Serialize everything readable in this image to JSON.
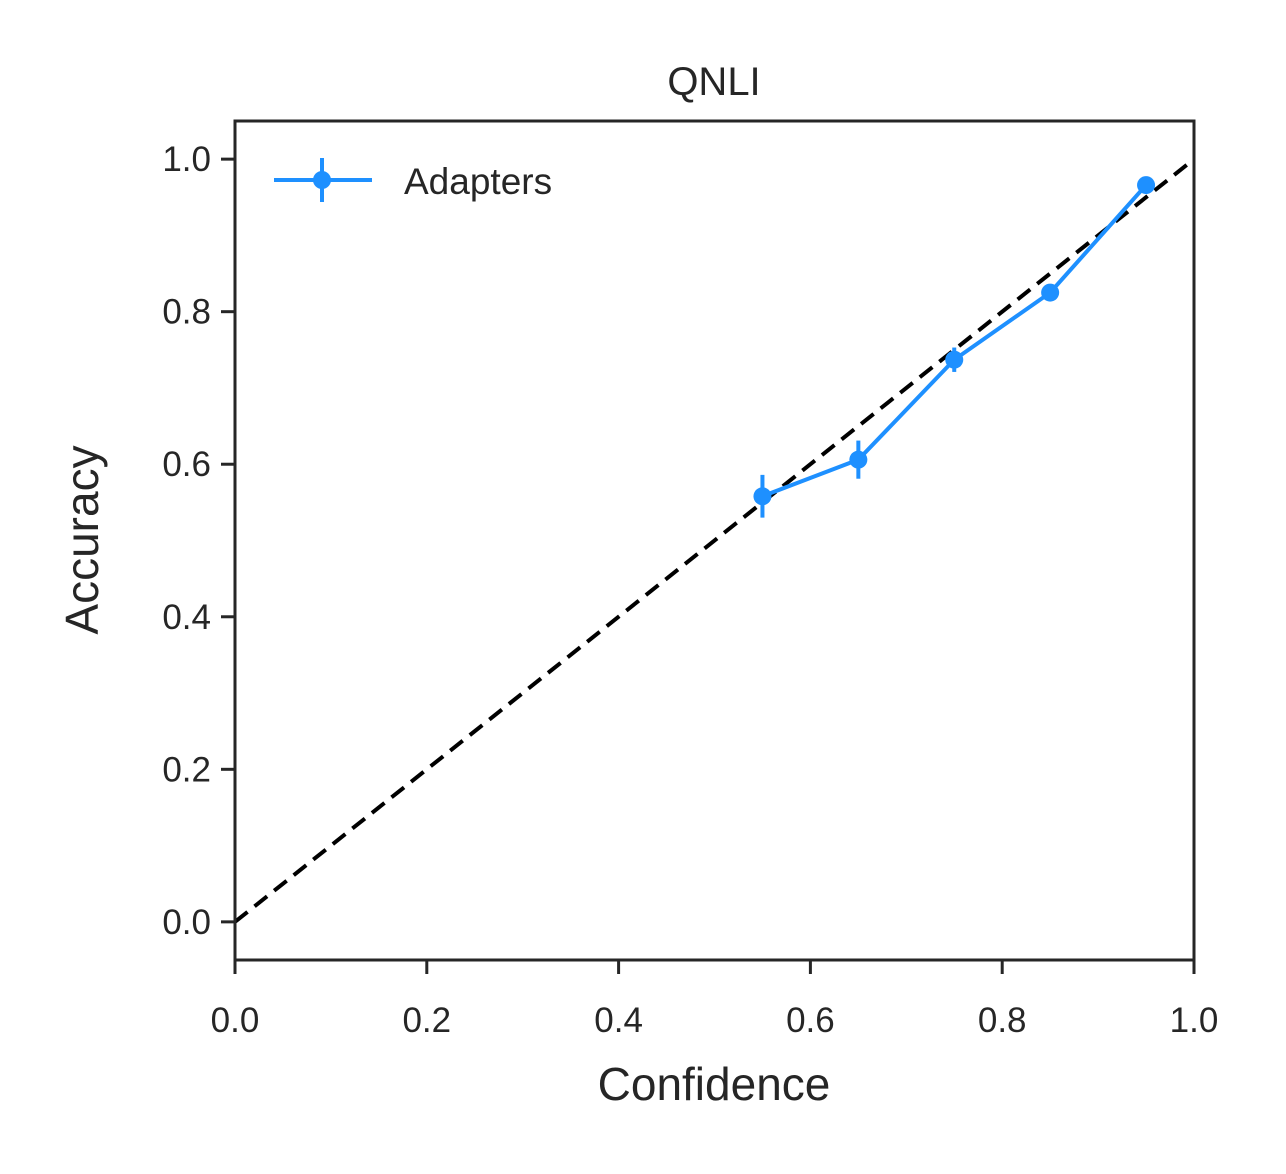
{
  "chart_data": {
    "type": "line",
    "title": "QNLI",
    "xlabel": "Confidence",
    "ylabel": "Accuracy",
    "xlim": [
      0.0,
      1.0
    ],
    "ylim": [
      -0.05,
      1.05
    ],
    "x_ticks": [
      "0.0",
      "0.2",
      "0.4",
      "0.6",
      "0.8",
      "1.0"
    ],
    "y_ticks": [
      "0.0",
      "0.2",
      "0.4",
      "0.6",
      "0.8",
      "1.0"
    ],
    "grid": false,
    "legend_position": "top-left",
    "reference_line": {
      "style": "dashed",
      "color": "#000000",
      "from": [
        0,
        0
      ],
      "to": [
        1,
        1
      ]
    },
    "series": [
      {
        "name": "Adapters",
        "color": "#1e90ff",
        "x": [
          0.55,
          0.65,
          0.75,
          0.85,
          0.95
        ],
        "y": [
          0.558,
          0.606,
          0.737,
          0.825,
          0.966
        ],
        "yerr": [
          0.028,
          0.025,
          0.016,
          0.008,
          0.006
        ]
      }
    ]
  }
}
